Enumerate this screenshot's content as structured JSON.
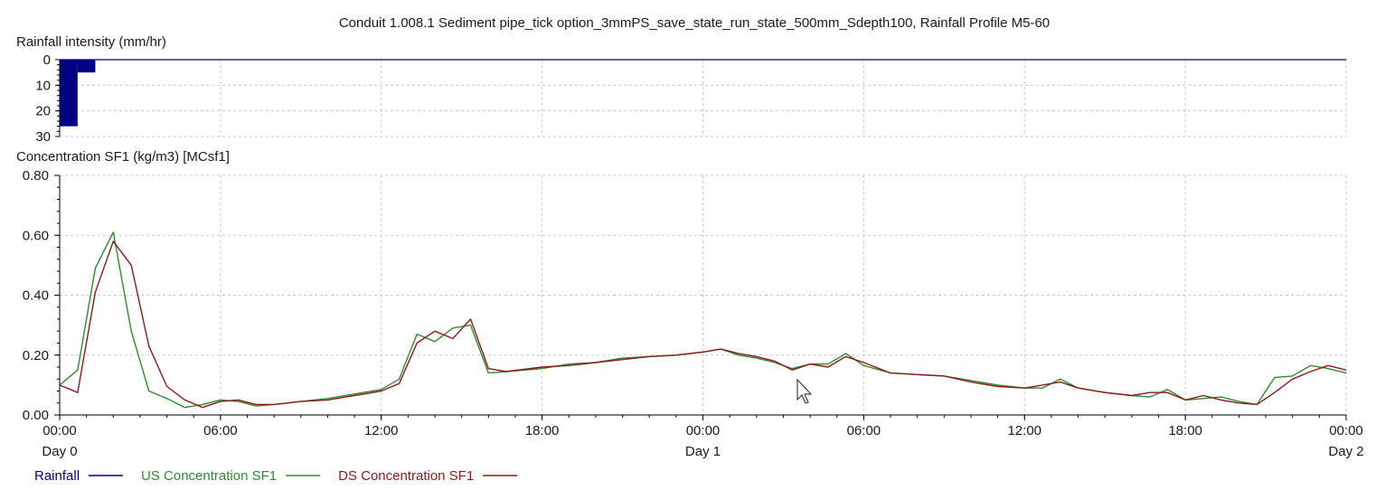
{
  "chart_data": {
    "type": "line",
    "title": "Conduit 1.008.1 Sediment pipe_tick option_3mmPS_save_state_run_state_500mm_Sdepth100, Rainfall Profile M5-60",
    "x_unit": "hours",
    "x_ticks": [
      {
        "x": 0,
        "time": "00:00",
        "day": "Day 0"
      },
      {
        "x": 6,
        "time": "06:00",
        "day": ""
      },
      {
        "x": 12,
        "time": "12:00",
        "day": ""
      },
      {
        "x": 18,
        "time": "18:00",
        "day": ""
      },
      {
        "x": 24,
        "time": "00:00",
        "day": "Day 1"
      },
      {
        "x": 30,
        "time": "06:00",
        "day": ""
      },
      {
        "x": 36,
        "time": "12:00",
        "day": ""
      },
      {
        "x": 42,
        "time": "18:00",
        "day": ""
      },
      {
        "x": 48,
        "time": "00:00",
        "day": "Day 2"
      }
    ],
    "xlim": [
      0,
      48
    ],
    "rainfall": {
      "ylabel": "Rainfall intensity (mm/hr)",
      "ylim": [
        0,
        30
      ],
      "inverted": true,
      "y_ticks": [
        "0",
        "10",
        "20",
        "30"
      ],
      "series_name": "Rainfall",
      "color": "#000080",
      "bars": [
        {
          "x0": 0.0,
          "x1": 0.67,
          "value": 26
        },
        {
          "x0": 0.67,
          "x1": 1.33,
          "value": 5
        }
      ]
    },
    "concentration": {
      "ylabel": "Concentration SF1 (kg/m3) [MCsf1]",
      "ylim": [
        0,
        0.8
      ],
      "y_ticks": [
        "0.00",
        "0.20",
        "0.40",
        "0.60",
        "0.80"
      ],
      "series": [
        {
          "name": "US Concentration SF1",
          "color": "#2e8b2e",
          "points": [
            [
              0,
              0.1
            ],
            [
              0.67,
              0.15
            ],
            [
              1.33,
              0.49
            ],
            [
              2.0,
              0.61
            ],
            [
              2.67,
              0.28
            ],
            [
              3.33,
              0.08
            ],
            [
              4.0,
              0.055
            ],
            [
              4.67,
              0.025
            ],
            [
              5.33,
              0.035
            ],
            [
              6.0,
              0.05
            ],
            [
              6.67,
              0.045
            ],
            [
              7.33,
              0.03
            ],
            [
              8.0,
              0.035
            ],
            [
              9.0,
              0.045
            ],
            [
              10.0,
              0.055
            ],
            [
              11.0,
              0.07
            ],
            [
              12.0,
              0.085
            ],
            [
              12.67,
              0.12
            ],
            [
              13.33,
              0.27
            ],
            [
              14.0,
              0.245
            ],
            [
              14.67,
              0.29
            ],
            [
              15.33,
              0.3
            ],
            [
              16.0,
              0.14
            ],
            [
              16.67,
              0.145
            ],
            [
              18.0,
              0.155
            ],
            [
              19.0,
              0.17
            ],
            [
              20.0,
              0.175
            ],
            [
              21.0,
              0.19
            ],
            [
              22.0,
              0.195
            ],
            [
              23.0,
              0.2
            ],
            [
              24.0,
              0.21
            ],
            [
              24.67,
              0.22
            ],
            [
              25.33,
              0.2
            ],
            [
              26.0,
              0.19
            ],
            [
              26.67,
              0.175
            ],
            [
              27.33,
              0.155
            ],
            [
              28.0,
              0.17
            ],
            [
              28.67,
              0.17
            ],
            [
              29.33,
              0.205
            ],
            [
              30.0,
              0.165
            ],
            [
              31.0,
              0.14
            ],
            [
              32.0,
              0.135
            ],
            [
              33.0,
              0.13
            ],
            [
              34.0,
              0.115
            ],
            [
              35.0,
              0.1
            ],
            [
              36.0,
              0.09
            ],
            [
              36.67,
              0.09
            ],
            [
              37.33,
              0.12
            ],
            [
              38.0,
              0.09
            ],
            [
              39.0,
              0.075
            ],
            [
              40.0,
              0.065
            ],
            [
              40.67,
              0.06
            ],
            [
              41.33,
              0.085
            ],
            [
              42.0,
              0.05
            ],
            [
              42.67,
              0.055
            ],
            [
              43.33,
              0.06
            ],
            [
              44.0,
              0.045
            ],
            [
              44.67,
              0.035
            ],
            [
              45.33,
              0.125
            ],
            [
              46.0,
              0.13
            ],
            [
              46.67,
              0.165
            ],
            [
              47.33,
              0.155
            ],
            [
              48.0,
              0.14
            ]
          ]
        },
        {
          "name": "DS Concentration SF1",
          "color": "#8b1a1a",
          "points": [
            [
              0,
              0.1
            ],
            [
              0.67,
              0.075
            ],
            [
              1.33,
              0.41
            ],
            [
              2.0,
              0.58
            ],
            [
              2.67,
              0.5
            ],
            [
              3.33,
              0.23
            ],
            [
              4.0,
              0.095
            ],
            [
              4.67,
              0.05
            ],
            [
              5.33,
              0.025
            ],
            [
              6.0,
              0.045
            ],
            [
              6.67,
              0.05
            ],
            [
              7.33,
              0.035
            ],
            [
              8.0,
              0.035
            ],
            [
              9.0,
              0.045
            ],
            [
              10.0,
              0.05
            ],
            [
              11.0,
              0.065
            ],
            [
              12.0,
              0.08
            ],
            [
              12.67,
              0.105
            ],
            [
              13.33,
              0.24
            ],
            [
              14.0,
              0.28
            ],
            [
              14.67,
              0.255
            ],
            [
              15.33,
              0.32
            ],
            [
              16.0,
              0.155
            ],
            [
              16.67,
              0.145
            ],
            [
              18.0,
              0.16
            ],
            [
              19.0,
              0.165
            ],
            [
              20.0,
              0.175
            ],
            [
              21.0,
              0.185
            ],
            [
              22.0,
              0.195
            ],
            [
              23.0,
              0.2
            ],
            [
              24.0,
              0.21
            ],
            [
              24.67,
              0.22
            ],
            [
              25.33,
              0.205
            ],
            [
              26.0,
              0.195
            ],
            [
              26.67,
              0.18
            ],
            [
              27.33,
              0.15
            ],
            [
              28.0,
              0.17
            ],
            [
              28.67,
              0.16
            ],
            [
              29.33,
              0.195
            ],
            [
              30.0,
              0.175
            ],
            [
              31.0,
              0.14
            ],
            [
              32.0,
              0.135
            ],
            [
              33.0,
              0.13
            ],
            [
              34.0,
              0.11
            ],
            [
              35.0,
              0.095
            ],
            [
              36.0,
              0.09
            ],
            [
              36.67,
              0.1
            ],
            [
              37.33,
              0.11
            ],
            [
              38.0,
              0.09
            ],
            [
              39.0,
              0.075
            ],
            [
              40.0,
              0.065
            ],
            [
              40.67,
              0.075
            ],
            [
              41.33,
              0.075
            ],
            [
              42.0,
              0.05
            ],
            [
              42.67,
              0.065
            ],
            [
              43.33,
              0.05
            ],
            [
              44.0,
              0.04
            ],
            [
              44.67,
              0.035
            ],
            [
              45.33,
              0.075
            ],
            [
              46.0,
              0.12
            ],
            [
              46.67,
              0.145
            ],
            [
              47.33,
              0.165
            ],
            [
              48.0,
              0.15
            ]
          ]
        }
      ]
    },
    "legend": {
      "placement": "bottom-left",
      "entries": [
        {
          "label": "Rainfall",
          "color": "#000080"
        },
        {
          "label": "US Concentration SF1",
          "color": "#2e8b2e"
        },
        {
          "label": "DS Concentration SF1",
          "color": "#8b1a1a"
        }
      ]
    },
    "grid": true
  }
}
